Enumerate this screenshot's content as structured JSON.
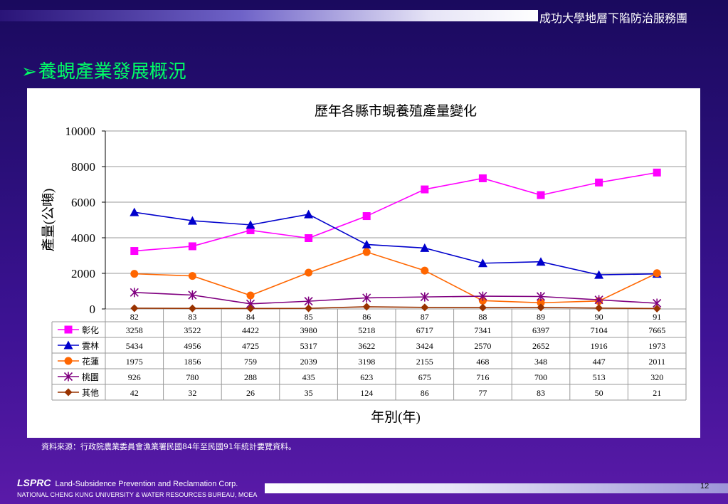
{
  "header": {
    "org": "成功大學地層下陷防治服務團"
  },
  "slide": {
    "title": "養蜆產業發展概況"
  },
  "source": "資料來源：行政院農業委員會漁業署民國84年至民國91年統計要覽資料。",
  "footer": {
    "logo": "LSPRC",
    "corp": "Land-Subsidence Prevention and Reclamation Corp.",
    "univ": "NATIONAL CHENG KUNG UNIVERSITY & WATER RESOURCES BUREAU, MOEA",
    "page": "12"
  },
  "chart_data": {
    "type": "line",
    "title": "歷年各縣市蜆養殖產量變化",
    "xlabel": "年別(年)",
    "ylabel": "產量(公噸)",
    "ylim": [
      0,
      10000
    ],
    "yticks": [
      0,
      2000,
      4000,
      6000,
      8000,
      10000
    ],
    "grid": true,
    "legend": "data-table",
    "categories": [
      "82",
      "83",
      "84",
      "85",
      "86",
      "87",
      "88",
      "89",
      "90",
      "91"
    ],
    "series": [
      {
        "name": "彰化",
        "color": "#ff00ff",
        "marker": "square",
        "values": [
          3258,
          3522,
          4422,
          3980,
          5218,
          6717,
          7341,
          6397,
          7104,
          7665
        ]
      },
      {
        "name": "雲林",
        "color": "#0000cc",
        "marker": "triangle",
        "values": [
          5434,
          4956,
          4725,
          5317,
          3622,
          3424,
          2570,
          2652,
          1916,
          1973
        ]
      },
      {
        "name": "花蓮",
        "color": "#ff6600",
        "marker": "circle",
        "values": [
          1975,
          1856,
          759,
          2039,
          3198,
          2155,
          468,
          348,
          447,
          2011
        ]
      },
      {
        "name": "桃園",
        "color": "#800080",
        "marker": "star",
        "values": [
          926,
          780,
          288,
          435,
          623,
          675,
          716,
          700,
          513,
          320
        ]
      },
      {
        "name": "其他",
        "color": "#993300",
        "marker": "diamond",
        "values": [
          42,
          32,
          26,
          35,
          124,
          86,
          77,
          83,
          50,
          21
        ]
      }
    ]
  }
}
